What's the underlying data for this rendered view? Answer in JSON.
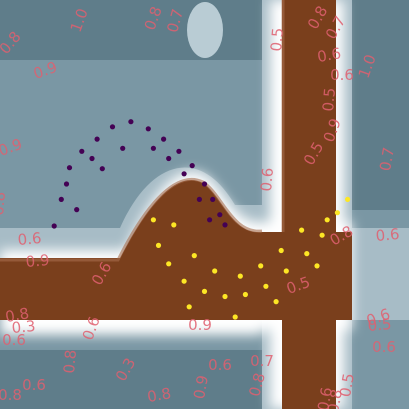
{
  "chart_data": {
    "type": "scatter",
    "title": "",
    "xlabel": "",
    "ylabel": "",
    "xlim": [
      -1.5,
      2.5
    ],
    "ylim": [
      -1.5,
      2.5
    ],
    "grid": false,
    "legend": "none",
    "background": "filled decision-function contour map (blue-grey high, brown low, white band at the boundary)",
    "colors": {
      "class_0": "#440154",
      "class_1": "#fde725",
      "contour_high": "#6b8794",
      "contour_low": "#7a3f1c",
      "boundary": "#ffffff",
      "contour_label": "#e06070"
    },
    "series": [
      {
        "class": 0,
        "color": "#440154",
        "description": "upper moon, arch opening downward",
        "points": [
          [
            -0.97,
            0.29
          ],
          [
            -0.9,
            0.55
          ],
          [
            -0.82,
            0.86
          ],
          [
            -0.7,
            1.02
          ],
          [
            -0.55,
            1.14
          ],
          [
            -0.4,
            1.26
          ],
          [
            -0.22,
            1.31
          ],
          [
            -0.05,
            1.24
          ],
          [
            0.1,
            1.14
          ],
          [
            0.25,
            1.02
          ],
          [
            0.38,
            0.88
          ],
          [
            0.5,
            0.7
          ],
          [
            0.58,
            0.55
          ],
          [
            0.65,
            0.4
          ],
          [
            0.7,
            0.3
          ],
          [
            -0.85,
            0.7
          ],
          [
            -0.6,
            0.95
          ],
          [
            -0.3,
            1.05
          ],
          [
            0.0,
            1.05
          ],
          [
            0.3,
            0.8
          ],
          [
            0.45,
            0.55
          ],
          [
            -0.75,
            0.45
          ],
          [
            -0.5,
            0.85
          ],
          [
            0.15,
            0.95
          ],
          [
            0.55,
            0.35
          ]
        ]
      },
      {
        "class": 1,
        "color": "#fde725",
        "description": "lower moon, arch opening upward",
        "points": [
          [
            0.0,
            0.35
          ],
          [
            0.05,
            0.1
          ],
          [
            0.15,
            -0.08
          ],
          [
            0.3,
            -0.25
          ],
          [
            0.5,
            -0.35
          ],
          [
            0.7,
            -0.4
          ],
          [
            0.9,
            -0.38
          ],
          [
            1.1,
            -0.3
          ],
          [
            1.3,
            -0.15
          ],
          [
            1.5,
            0.02
          ],
          [
            1.65,
            0.2
          ],
          [
            1.8,
            0.42
          ],
          [
            1.9,
            0.55
          ],
          [
            0.2,
            0.3
          ],
          [
            0.4,
            0.0
          ],
          [
            0.6,
            -0.15
          ],
          [
            0.85,
            -0.2
          ],
          [
            1.05,
            -0.1
          ],
          [
            1.25,
            0.05
          ],
          [
            1.45,
            0.25
          ],
          [
            1.7,
            0.35
          ],
          [
            0.35,
            -0.5
          ],
          [
            0.8,
            -0.6
          ],
          [
            1.2,
            -0.45
          ],
          [
            1.6,
            -0.1
          ]
        ]
      }
    ],
    "contour_labels": [
      "0.8",
      "1.0",
      "0.9",
      "0.8",
      "0.7",
      "0.9",
      "0.5",
      "0.6",
      "0.6",
      "0.5",
      "0.7",
      "0.8",
      "1.0",
      "0.9",
      "0.5",
      "0.8",
      "0.6",
      "0.9",
      "0.8",
      "0.6",
      "0.7",
      "0.6",
      "0.6",
      "0.3",
      "0.8",
      "0.6",
      "0.9",
      "0.5",
      "0.6",
      "0.6",
      "0.6",
      "0.8",
      "0.3",
      "0.8",
      "0.9",
      "0.6",
      "0.8",
      "0.7",
      "0.6",
      "0.8",
      "0.5",
      "0.6",
      "0.8",
      "0.5"
    ]
  }
}
